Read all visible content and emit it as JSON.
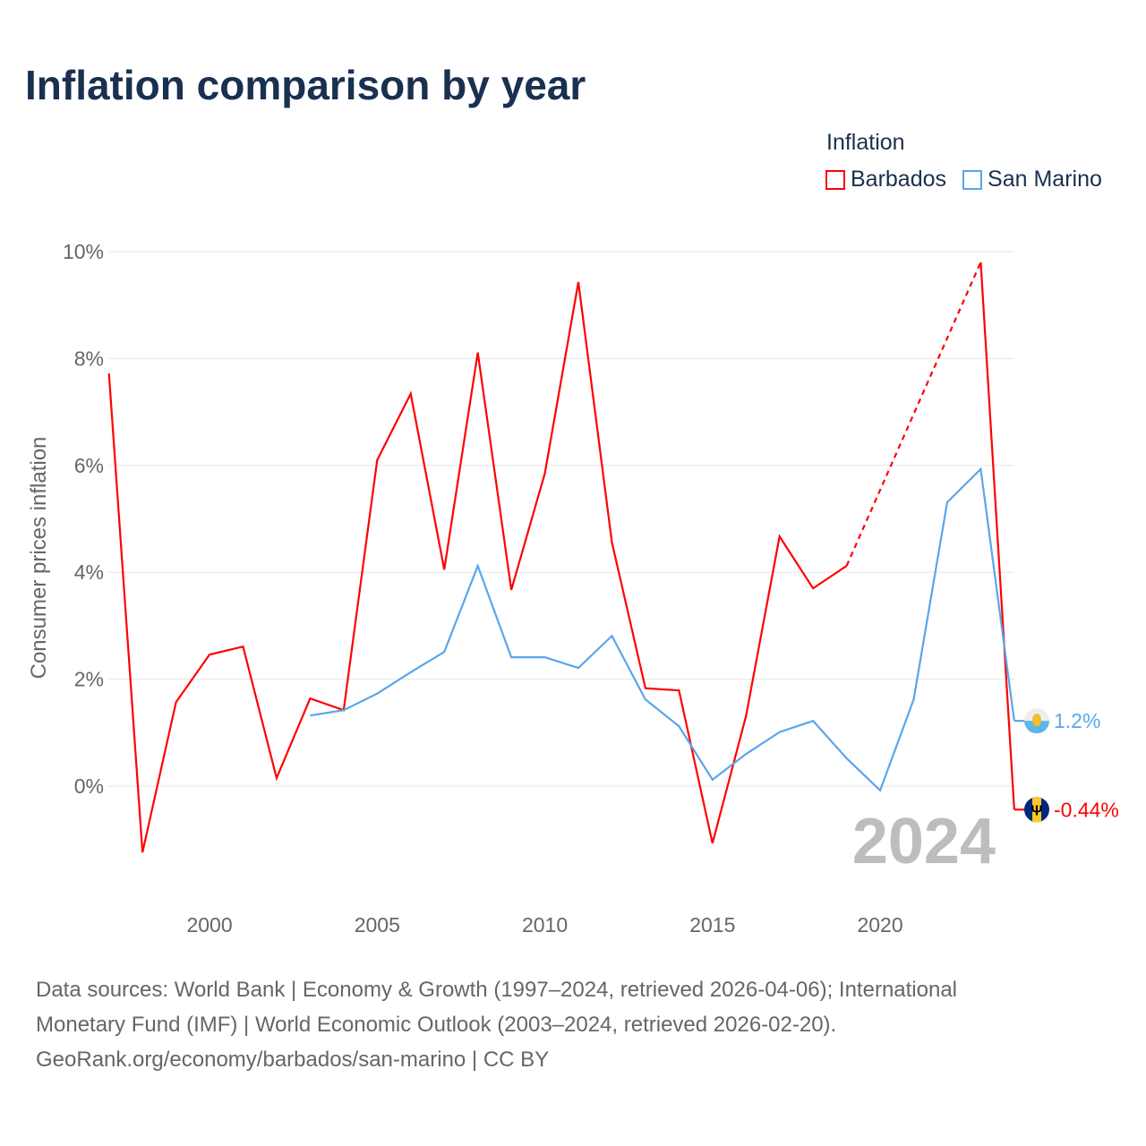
{
  "title": "Inflation comparison by year",
  "legend": {
    "title": "Inflation",
    "items": [
      {
        "name": "Barbados",
        "color": "#ff0000"
      },
      {
        "name": "San Marino",
        "color": "#5aa5ec"
      }
    ]
  },
  "watermark_year": "2024",
  "footer": {
    "line1": "Data sources: World Bank | Economy & Growth (1997–2024, retrieved 2026-04-06); International",
    "line2": "Monetary Fund (IMF) | World Economic Outlook (2003–2024, retrieved 2026-02-20).",
    "line3": "GeoRank.org/economy/barbados/san-marino | CC BY"
  },
  "chart_data": {
    "type": "line",
    "title": "Inflation comparison by year",
    "xlabel": "",
    "ylabel": "Consumer prices inflation",
    "xlim": [
      1997,
      2024
    ],
    "ylim": [
      -2,
      10
    ],
    "x_ticks": [
      2000,
      2005,
      2010,
      2015,
      2020
    ],
    "y_ticks": [
      0,
      2,
      4,
      6,
      8,
      10
    ],
    "y_tick_labels": [
      "0%",
      "2%",
      "4%",
      "6%",
      "8%",
      "10%"
    ],
    "grid": true,
    "legend_position": "top-right",
    "x": [
      1997,
      1998,
      1999,
      2000,
      2001,
      2002,
      2003,
      2004,
      2005,
      2006,
      2007,
      2008,
      2009,
      2010,
      2011,
      2012,
      2013,
      2014,
      2015,
      2016,
      2017,
      2018,
      2019,
      2020,
      2021,
      2022,
      2023,
      2024
    ],
    "series": [
      {
        "name": "Barbados",
        "color": "#ff0000",
        "end_label": "-0.44%",
        "values": [
          7.72,
          -1.24,
          1.57,
          2.46,
          2.61,
          0.15,
          1.64,
          1.42,
          6.1,
          7.34,
          4.05,
          8.11,
          3.67,
          5.85,
          9.43,
          4.56,
          1.83,
          1.79,
          -1.07,
          1.31,
          4.67,
          3.7,
          4.12,
          null,
          null,
          null,
          9.8,
          -0.44
        ]
      },
      {
        "name": "San Marino",
        "color": "#5aa5ec",
        "end_label": "1.2%",
        "values": [
          null,
          null,
          null,
          null,
          null,
          null,
          1.32,
          1.42,
          1.73,
          2.13,
          2.51,
          4.12,
          2.41,
          2.41,
          2.21,
          2.81,
          1.62,
          1.12,
          0.12,
          0.6,
          1.01,
          1.22,
          0.52,
          -0.08,
          1.62,
          5.31,
          5.93,
          1.22
        ]
      }
    ]
  }
}
